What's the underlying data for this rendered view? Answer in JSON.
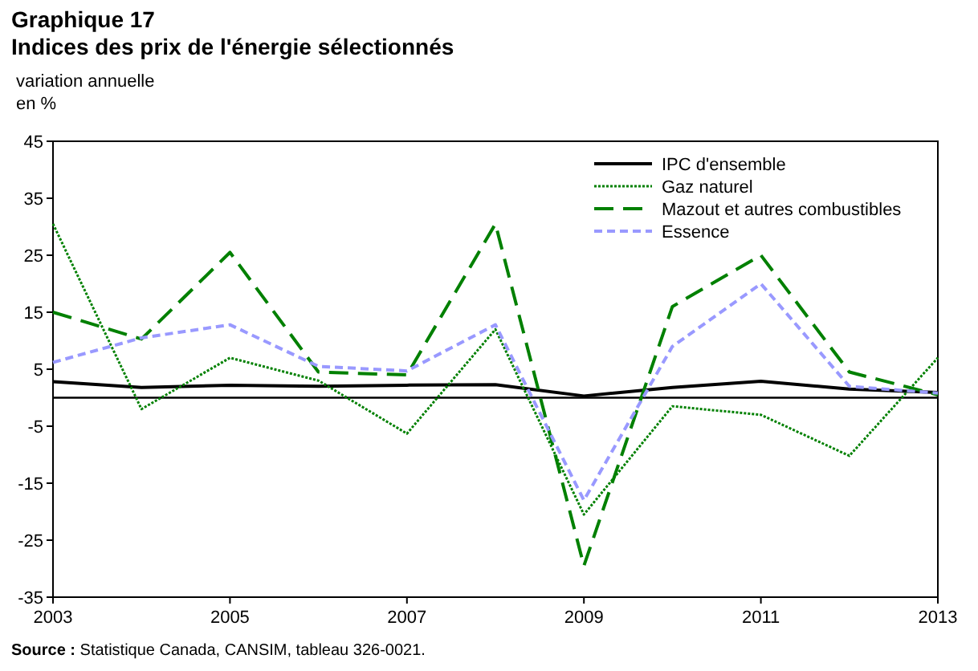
{
  "chart_data": {
    "type": "line",
    "title": "Graphique 17",
    "subtitle": "Indices des prix de l'énergie sélectionnés",
    "ylabel": "variation annuelle\nen %",
    "x": [
      2003,
      2004,
      2005,
      2006,
      2007,
      2008,
      2009,
      2010,
      2011,
      2012,
      2013
    ],
    "series": [
      {
        "name": "IPC d'ensemble",
        "color": "#000000",
        "line_style": "solid",
        "values": [
          2.8,
          1.8,
          2.2,
          2.0,
          2.2,
          2.3,
          0.3,
          1.8,
          2.9,
          1.5,
          0.9
        ]
      },
      {
        "name": "Gaz naturel",
        "color": "#008000",
        "line_style": "dotted",
        "values": [
          30.5,
          -2,
          7,
          3,
          -6.3,
          12,
          -20.5,
          -1.5,
          -3,
          -10.2,
          7
        ]
      },
      {
        "name": "Mazout et autres combustibles",
        "color": "#008000",
        "line_style": "dashed",
        "values": [
          15,
          10.3,
          25.5,
          4.5,
          4,
          30.5,
          -29.5,
          16,
          25,
          4.5,
          0.5
        ]
      },
      {
        "name": "Essence",
        "color": "#9999ff",
        "line_style": "dashed",
        "values": [
          6.2,
          10.5,
          12.8,
          5.5,
          4.7,
          12.8,
          -18,
          9,
          20,
          2,
          0.8
        ]
      }
    ],
    "xlim": [
      2003,
      2013
    ],
    "xticks": [
      2003,
      2005,
      2007,
      2009,
      2011,
      2013
    ],
    "ylim": [
      -35,
      45
    ],
    "yticks": [
      -35,
      -25,
      -15,
      -5,
      5,
      15,
      25,
      35,
      45
    ],
    "ref_lines": [
      {
        "axis": "y",
        "value": 0,
        "color": "#000000"
      }
    ],
    "grid": false,
    "legend": "top right",
    "marker": "none",
    "annotations": [
      "Source : Statistique Canada, CANSIM, tableau 326-0021."
    ]
  }
}
